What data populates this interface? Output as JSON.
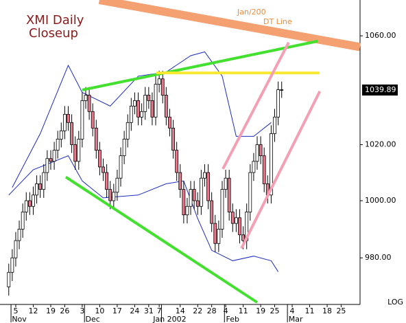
{
  "chart_data": {
    "type": "candlestick",
    "title": "XMI Daily",
    "subtitle": "Closeup",
    "annotations": [
      "Jan/200",
      "DT Line"
    ],
    "log_label": "LOG",
    "log": true,
    "grid": false,
    "up_color": "#ffffff",
    "down_color": "#e57a8c",
    "last_price": 1039.89,
    "xlim": [
      -2.5,
      100.4
    ],
    "ylim": [
      964,
      1073.5
    ],
    "yticks": [
      {
        "value": 980,
        "label": "980.00"
      },
      {
        "value": 1000,
        "label": "1000.00"
      },
      {
        "value": 1020,
        "label": "1020.00"
      },
      {
        "value": 1060,
        "label": "1060.00"
      }
    ],
    "xticks": [
      {
        "value": 2,
        "label": "5"
      },
      {
        "value": 7,
        "label": "12"
      },
      {
        "value": 12,
        "label": "19"
      },
      {
        "value": 16,
        "label": "26"
      },
      {
        "value": 21,
        "label": "3"
      },
      {
        "value": 26,
        "label": "10"
      },
      {
        "value": 31,
        "label": "17"
      },
      {
        "value": 36,
        "label": "24"
      },
      {
        "value": 40,
        "label": "31"
      },
      {
        "value": 43,
        "label": "7"
      },
      {
        "value": 49,
        "label": "14"
      },
      {
        "value": 54,
        "label": "22"
      },
      {
        "value": 58,
        "label": "28"
      },
      {
        "value": 62,
        "label": "4"
      },
      {
        "value": 67,
        "label": "11"
      },
      {
        "value": 72,
        "label": "19"
      },
      {
        "value": 76,
        "label": "25"
      },
      {
        "value": 81,
        "label": "4"
      },
      {
        "value": 86,
        "label": "11"
      },
      {
        "value": 91,
        "label": "18"
      },
      {
        "value": 95,
        "label": "25"
      }
    ],
    "months": [
      {
        "value": 3,
        "label": "Nov"
      },
      {
        "value": 24,
        "label": "Dec"
      },
      {
        "value": 46,
        "label": "Jan 2002"
      },
      {
        "value": 64,
        "label": "Feb"
      },
      {
        "value": 82,
        "label": "Mar"
      }
    ],
    "candles": {
      "x": [
        0,
        1,
        2,
        3,
        4,
        5,
        6,
        7,
        8,
        9,
        10,
        11,
        12,
        13,
        14,
        15,
        16,
        17,
        18,
        19,
        20,
        21,
        22,
        23,
        24,
        25,
        26,
        27,
        28,
        29,
        30,
        31,
        32,
        33,
        34,
        35,
        36,
        37,
        38,
        39,
        40,
        41,
        42,
        43,
        44,
        45,
        46,
        47,
        48,
        49,
        50,
        51,
        52,
        53,
        54,
        55,
        56,
        57,
        58,
        59,
        60,
        61,
        62,
        63,
        64,
        65,
        66,
        67,
        68,
        69,
        70,
        71,
        72,
        73,
        74,
        75,
        76,
        77,
        78
      ],
      "open": [
        970,
        975,
        980,
        986,
        990,
        996,
        1000,
        998,
        1002,
        1006,
        1004,
        1010,
        1015,
        1014,
        1018,
        1022,
        1025,
        1031,
        1028,
        1020,
        1014,
        1022,
        1036,
        1038,
        1032,
        1026,
        1018,
        1012,
        1010,
        1004,
        1000,
        1003,
        1008,
        1016,
        1022,
        1028,
        1034,
        1036,
        1030,
        1032,
        1038,
        1036,
        1030,
        1042,
        1044,
        1038,
        1030,
        1026,
        1018,
        1010,
        1004,
        995,
        998,
        1004,
        1000,
        998,
        1008,
        1010,
        1000,
        992,
        985,
        990,
        1004,
        1008,
        996,
        992,
        994,
        988,
        986,
        996,
        1010,
        1014,
        1020,
        1016,
        1006,
        1002,
        1024,
        1030,
        1040
      ],
      "high": [
        978,
        983,
        989,
        993,
        999,
        1003,
        1003,
        1005,
        1009,
        1009,
        1013,
        1018,
        1018,
        1021,
        1025,
        1028,
        1034,
        1034,
        1031,
        1023,
        1025,
        1039,
        1041,
        1041,
        1035,
        1029,
        1021,
        1015,
        1013,
        1007,
        1006,
        1011,
        1019,
        1025,
        1031,
        1037,
        1039,
        1039,
        1035,
        1041,
        1041,
        1039,
        1045,
        1047,
        1047,
        1041,
        1033,
        1029,
        1021,
        1013,
        1007,
        1001,
        1007,
        1007,
        1003,
        1011,
        1013,
        1013,
        1003,
        995,
        993,
        1007,
        1011,
        1011,
        999,
        997,
        997,
        991,
        999,
        1013,
        1017,
        1023,
        1023,
        1019,
        1009,
        1027,
        1033,
        1043,
        1043
      ],
      "low": [
        967,
        972,
        977,
        983,
        987,
        993,
        995,
        995,
        999,
        1001,
        1001,
        1007,
        1011,
        1011,
        1015,
        1019,
        1022,
        1025,
        1017,
        1011,
        1011,
        1019,
        1033,
        1029,
        1023,
        1015,
        1009,
        1007,
        1001,
        997,
        997,
        1000,
        1005,
        1013,
        1019,
        1025,
        1031,
        1027,
        1027,
        1029,
        1033,
        1027,
        1027,
        1039,
        1035,
        1027,
        1023,
        1015,
        1007,
        1001,
        992,
        992,
        995,
        997,
        995,
        995,
        1005,
        997,
        989,
        982,
        982,
        987,
        1001,
        993,
        989,
        989,
        985,
        983,
        983,
        993,
        1007,
        1011,
        1013,
        1003,
        999,
        999,
        1021,
        1027,
        1037
      ],
      "close": [
        975,
        980,
        986,
        990,
        996,
        1000,
        998,
        1002,
        1006,
        1004,
        1010,
        1015,
        1014,
        1018,
        1022,
        1025,
        1031,
        1028,
        1020,
        1014,
        1022,
        1036,
        1038,
        1032,
        1026,
        1018,
        1012,
        1010,
        1004,
        1000,
        1003,
        1008,
        1016,
        1022,
        1028,
        1034,
        1036,
        1030,
        1032,
        1038,
        1036,
        1030,
        1042,
        1044,
        1038,
        1030,
        1026,
        1018,
        1010,
        1004,
        995,
        998,
        1004,
        1000,
        998,
        1008,
        1010,
        1000,
        992,
        985,
        990,
        1004,
        1008,
        996,
        992,
        994,
        988,
        986,
        996,
        1010,
        1014,
        1020,
        1016,
        1006,
        1002,
        1024,
        1030,
        1040,
        1039.89
      ]
    },
    "bands": [
      {
        "color": "#1a2bbf",
        "x": [
          1,
          9,
          17,
          21,
          29,
          37,
          45,
          52,
          56,
          61,
          65,
          70,
          75
        ],
        "values": [
          1004.7,
          1024,
          1049,
          1039,
          1034,
          1045,
          1046.5,
          1052.6,
          1054,
          1045,
          1023,
          1023,
          1028
        ]
      },
      {
        "color": "#1a2bbf",
        "x": [
          0,
          7,
          17,
          21,
          27,
          37,
          45,
          50,
          54,
          58,
          64,
          70,
          75,
          77
        ],
        "values": [
          1002,
          1011,
          1016,
          1007,
          1001,
          1002,
          1006,
          1007,
          993.7,
          982.6,
          979,
          980.6,
          979,
          975.2
        ]
      }
    ],
    "trendlines": [
      {
        "color": "#f4a070",
        "width": 12,
        "x": [
          25.9,
          100.4
        ],
        "values": [
          1073.5,
          1055.8
        ]
      },
      {
        "color": "#44e030",
        "width": 4,
        "x": [
          21,
          88.3
        ],
        "values": [
          1039.9,
          1058
        ]
      },
      {
        "color": "#44e030",
        "width": 4,
        "x": [
          16.3,
          71
        ],
        "values": [
          1008.4,
          964.7
        ]
      },
      {
        "color": "#f8e830",
        "width": 4,
        "x": [
          42.2,
          88.8
        ],
        "values": [
          1046.2,
          1046.2
        ]
      },
      {
        "color": "#f4a0b4",
        "width": 4,
        "x": [
          61.2,
          80
        ],
        "values": [
          1011.3,
          1057.5
        ]
      },
      {
        "color": "#f4a0b4",
        "width": 4,
        "x": [
          66.5,
          88.9
        ],
        "values": [
          983.3,
          1039.4
        ]
      }
    ]
  }
}
